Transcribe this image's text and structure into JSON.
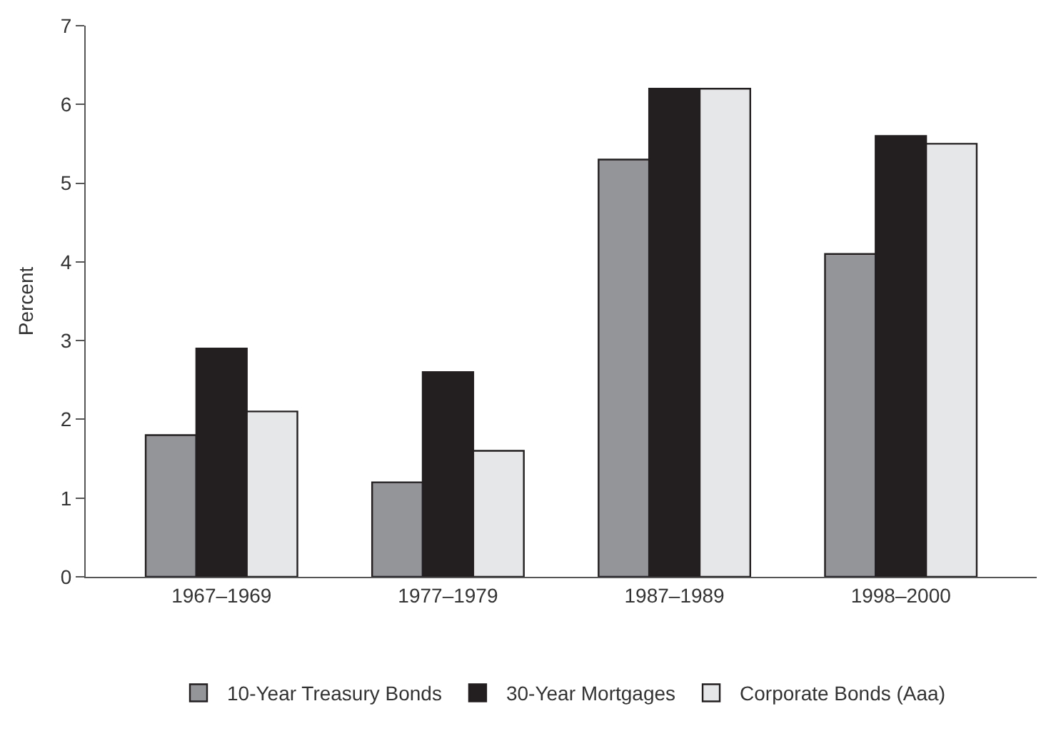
{
  "chart_data": {
    "type": "bar",
    "ylabel": "Percent",
    "categories": [
      "1967–1969",
      "1977–1979",
      "1987–1989",
      "1998–2000"
    ],
    "series": [
      {
        "name": "10-Year Treasury Bonds",
        "color": "#939598",
        "values": [
          1.8,
          1.2,
          5.3,
          4.1
        ]
      },
      {
        "name": "30-Year Mortgages",
        "color": "#231f20",
        "values": [
          2.9,
          2.6,
          6.2,
          5.6
        ]
      },
      {
        "name": "Corporate Bonds (Aaa)",
        "color": "#e6e7e8",
        "values": [
          2.1,
          1.6,
          6.2,
          5.5
        ]
      }
    ],
    "ylim": [
      0,
      7
    ],
    "yticks": [
      0,
      1,
      2,
      3,
      4,
      5,
      6,
      7
    ],
    "legend": "bottom"
  }
}
